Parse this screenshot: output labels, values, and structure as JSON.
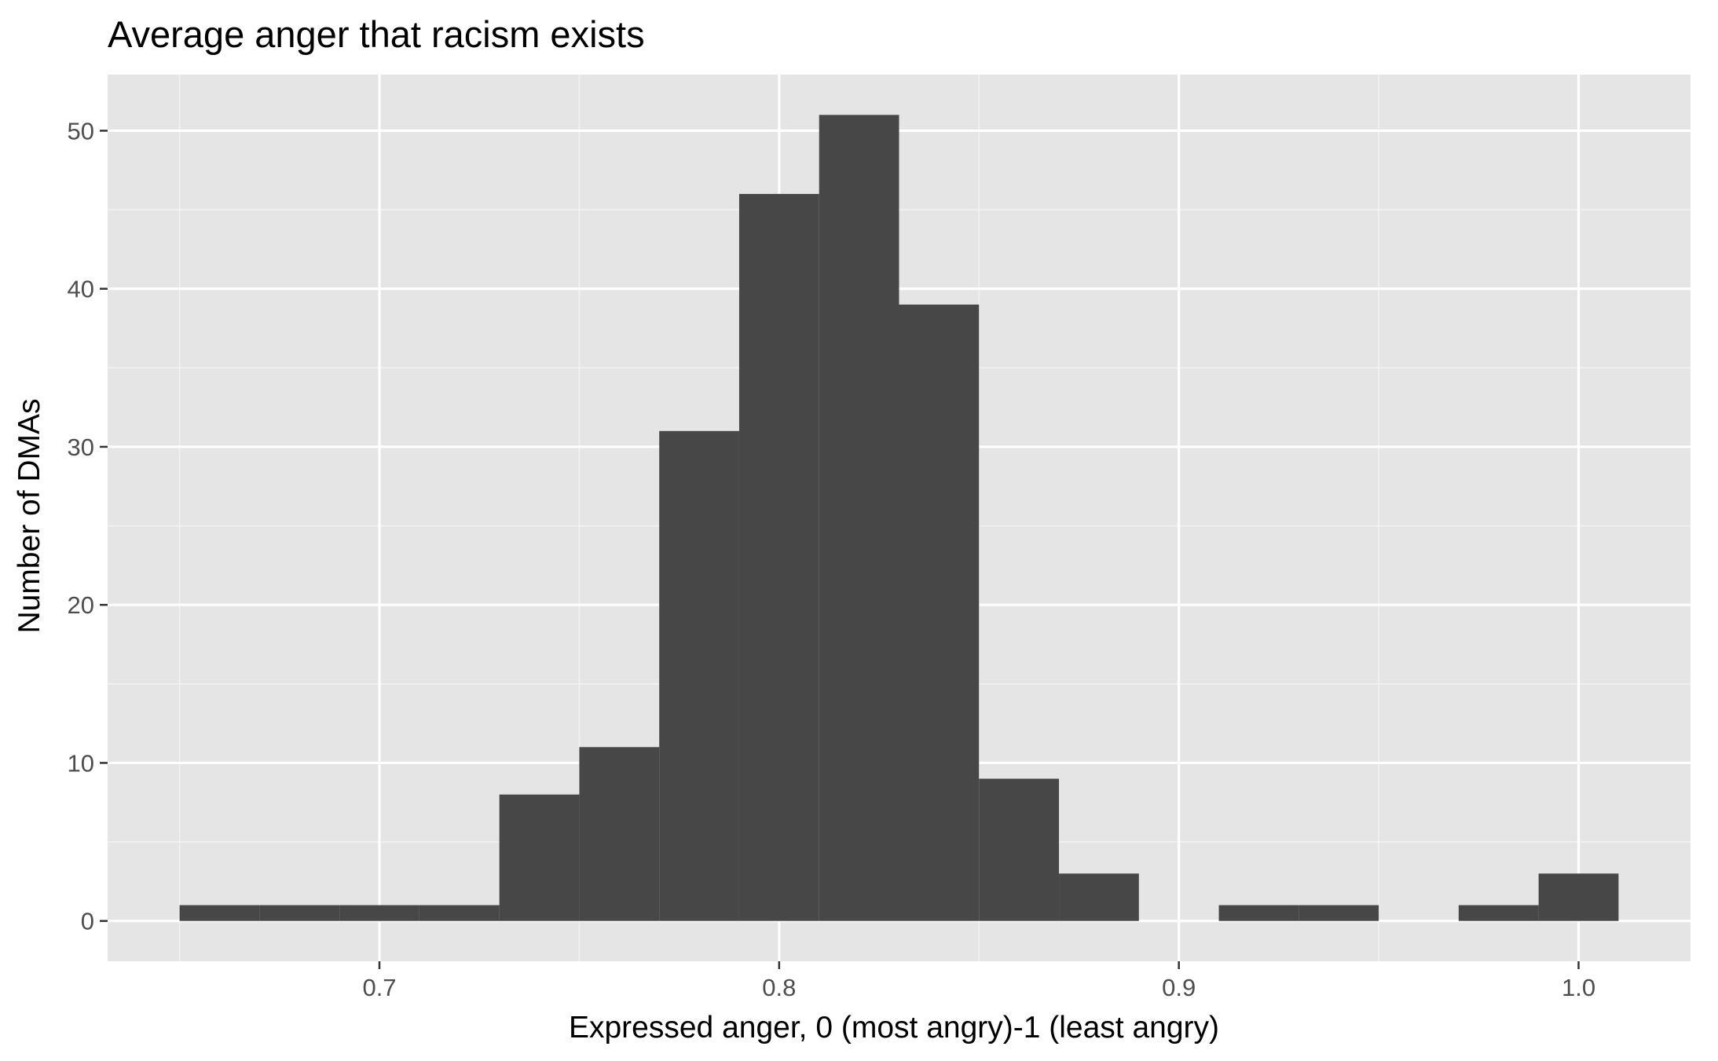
{
  "colors": {
    "panel_background": "#e5e5e5",
    "grid_major": "#ffffff",
    "grid_minor": "#f2f2f2",
    "bar_fill": "#474747",
    "tick_color": "#333333",
    "tick_label_color": "#4d4d4d",
    "title_color": "#000000"
  },
  "chart_data": {
    "type": "bar",
    "title": "Average anger that racism exists",
    "xlabel": "Expressed anger, 0 (most angry)-1 (least angry)",
    "ylabel": "Number of DMAs",
    "bin_width": 0.02,
    "bins": [
      {
        "x_start": 0.65,
        "x_end": 0.67,
        "count": 1
      },
      {
        "x_start": 0.67,
        "x_end": 0.69,
        "count": 1
      },
      {
        "x_start": 0.69,
        "x_end": 0.71,
        "count": 1
      },
      {
        "x_start": 0.71,
        "x_end": 0.73,
        "count": 1
      },
      {
        "x_start": 0.73,
        "x_end": 0.75,
        "count": 8
      },
      {
        "x_start": 0.75,
        "x_end": 0.77,
        "count": 11
      },
      {
        "x_start": 0.77,
        "x_end": 0.79,
        "count": 31
      },
      {
        "x_start": 0.79,
        "x_end": 0.81,
        "count": 46
      },
      {
        "x_start": 0.81,
        "x_end": 0.83,
        "count": 51
      },
      {
        "x_start": 0.83,
        "x_end": 0.85,
        "count": 39
      },
      {
        "x_start": 0.85,
        "x_end": 0.87,
        "count": 9
      },
      {
        "x_start": 0.87,
        "x_end": 0.89,
        "count": 3
      },
      {
        "x_start": 0.89,
        "x_end": 0.91,
        "count": 0
      },
      {
        "x_start": 0.91,
        "x_end": 0.93,
        "count": 1
      },
      {
        "x_start": 0.93,
        "x_end": 0.95,
        "count": 1
      },
      {
        "x_start": 0.95,
        "x_end": 0.97,
        "count": 0
      },
      {
        "x_start": 0.97,
        "x_end": 0.99,
        "count": 1
      },
      {
        "x_start": 0.99,
        "x_end": 1.01,
        "count": 3
      }
    ],
    "xlim": [
      0.632,
      1.028
    ],
    "ylim": [
      -2.55,
      53.55
    ],
    "x_ticks": [
      0.7,
      0.8,
      0.9,
      1.0
    ],
    "x_tick_labels": [
      "0.7",
      "0.8",
      "0.9",
      "1.0"
    ],
    "x_minor_ticks": [
      0.65,
      0.75,
      0.85,
      0.95
    ],
    "y_ticks": [
      0,
      10,
      20,
      30,
      40,
      50
    ],
    "y_tick_labels": [
      "0",
      "10",
      "20",
      "30",
      "40",
      "50"
    ],
    "y_minor_ticks": [
      5,
      15,
      25,
      35,
      45
    ],
    "grid": true,
    "legend": "none"
  }
}
